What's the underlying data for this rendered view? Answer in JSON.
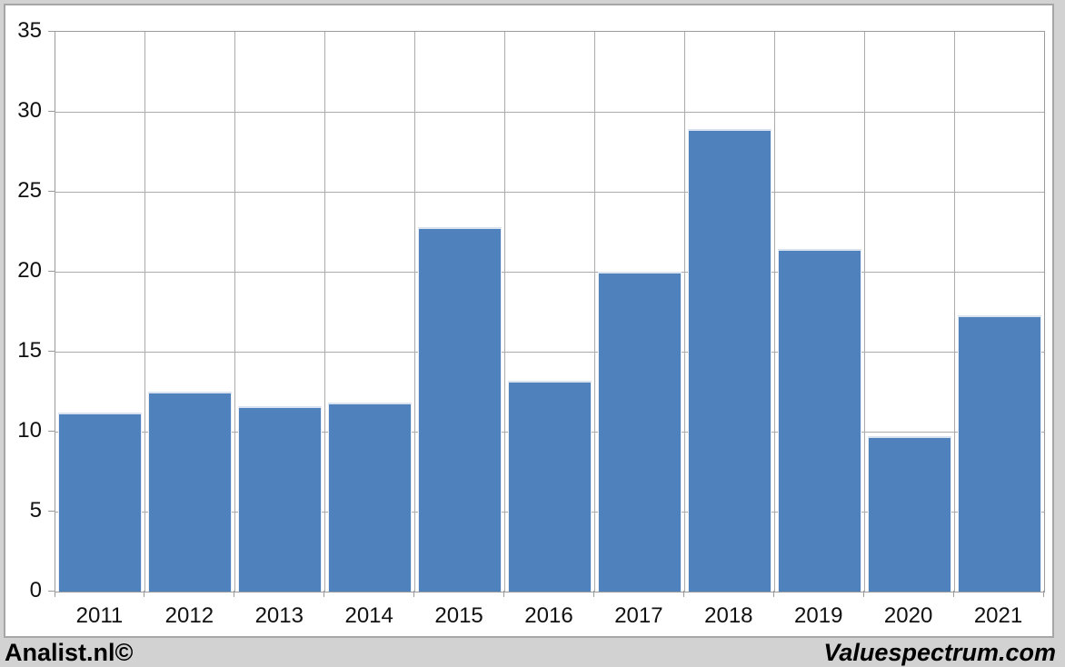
{
  "chart_data": {
    "type": "bar",
    "categories": [
      "2011",
      "2012",
      "2013",
      "2014",
      "2015",
      "2016",
      "2017",
      "2018",
      "2019",
      "2020",
      "2021"
    ],
    "values": [
      11.2,
      12.5,
      11.6,
      11.8,
      22.8,
      13.2,
      20.0,
      28.9,
      21.4,
      9.7,
      17.3
    ],
    "title": "",
    "xlabel": "",
    "ylabel": "",
    "ylim": [
      0,
      35
    ],
    "yticks": [
      0,
      5,
      10,
      15,
      20,
      25,
      30,
      35
    ],
    "grid": true,
    "legend_position": "none",
    "bar_color": "#4F81BD",
    "gridline_color": "#ABABAB",
    "axis_color": "#9B9B9B",
    "plot_background": "#FFFFFF",
    "frame_background": "#D2D2D2"
  },
  "footer": {
    "left": "Analist.nl©",
    "right": "Valuespectrum.com"
  }
}
